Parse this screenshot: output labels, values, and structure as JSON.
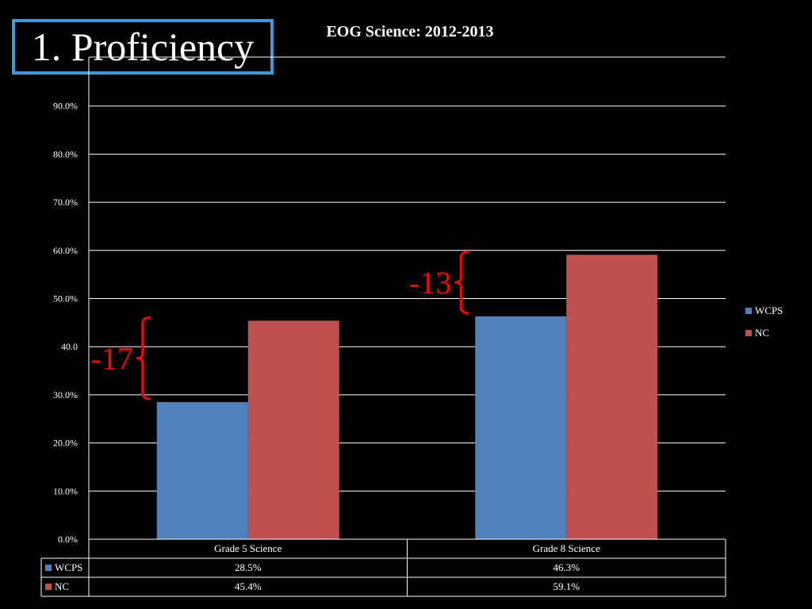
{
  "slide": {
    "title": "1. Proficiency"
  },
  "chart_data": {
    "type": "bar",
    "title": "EOG Science:  2012-2013",
    "categories": [
      "Grade 5 Science",
      "Grade 8 Science"
    ],
    "series": [
      {
        "name": "WCPS",
        "values": [
          28.5,
          46.3
        ],
        "labels": [
          "28.5%",
          "46.3%"
        ],
        "color": "#4f81bd"
      },
      {
        "name": "NC",
        "values": [
          45.4,
          59.1
        ],
        "labels": [
          "45.4%",
          "59.1%"
        ],
        "color": "#c0504d"
      }
    ],
    "ylim": [
      0,
      90
    ],
    "yticks": [
      0,
      10,
      20,
      30,
      40,
      50,
      60,
      70,
      80,
      90
    ],
    "ytick_labels": [
      "0.0%",
      "10.0%",
      "20.0%",
      "30.0%",
      "40.0",
      "50.0%",
      "60.0%",
      "70.0%",
      "80.0%",
      "90.0%"
    ],
    "grid": true,
    "legend": "right",
    "data_table": true,
    "annotations": [
      {
        "text": "-17",
        "category": 0,
        "from": 28.5,
        "to": 45.4,
        "color": "#ff0000"
      },
      {
        "text": "-13",
        "category": 1,
        "from": 46.3,
        "to": 59.1,
        "color": "#ff0000"
      }
    ]
  }
}
